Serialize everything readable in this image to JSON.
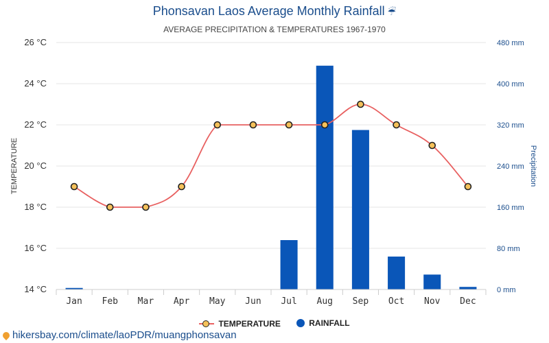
{
  "header": {
    "title": "Phonsavan Laos Average Monthly Rainfall",
    "title_icon": "umbrella-rain-icon",
    "subtitle": "AVERAGE PRECIPITATION & TEMPERATURES 1967-1970"
  },
  "legend": {
    "temperature_label": "TEMPERATURE",
    "rainfall_label": "RAINFALL"
  },
  "source": {
    "icon": "location-pin-icon",
    "text": "hikersbay.com/climate/laoPDR/muangphonsavan"
  },
  "colors": {
    "rainfall_bar": "#0a56b8",
    "temperature_line": "#e86060",
    "temperature_marker": "#f5c15a",
    "right_axis_text": "#1a4d8c"
  },
  "chart_data": {
    "type": "bar",
    "categories": [
      "Jan",
      "Feb",
      "Mar",
      "Apr",
      "May",
      "Jun",
      "Jul",
      "Aug",
      "Sep",
      "Oct",
      "Nov",
      "Dec"
    ],
    "series": [
      {
        "name": "TEMPERATURE",
        "type": "line",
        "axis": "left",
        "values": [
          19,
          18,
          18,
          19,
          22,
          22,
          22,
          22,
          23,
          22,
          21,
          19
        ]
      },
      {
        "name": "RAINFALL",
        "type": "bar",
        "axis": "right",
        "values": [
          3,
          0,
          0,
          0,
          0,
          0,
          96,
          435,
          310,
          64,
          29,
          5
        ]
      }
    ],
    "title": "Phonsavan Laos Average Monthly Rainfall",
    "subtitle": "AVERAGE PRECIPITATION & TEMPERATURES 1967-1970",
    "ylabel": "TEMPERATURE",
    "y2label": "Precipitation",
    "ylim": [
      14,
      26
    ],
    "y2lim": [
      0,
      480
    ],
    "yticks": [
      "14 °C",
      "16 °C",
      "18 °C",
      "20 °C",
      "22 °C",
      "24 °C",
      "26 °C"
    ],
    "y2ticks": [
      "0 mm",
      "80 mm",
      "160 mm",
      "240 mm",
      "320 mm",
      "400 mm",
      "480 mm"
    ],
    "ytick_values": [
      14,
      16,
      18,
      20,
      22,
      24,
      26
    ],
    "y2tick_values": [
      0,
      80,
      160,
      240,
      320,
      400,
      480
    ],
    "grid": true,
    "legend_position": "bottom"
  }
}
